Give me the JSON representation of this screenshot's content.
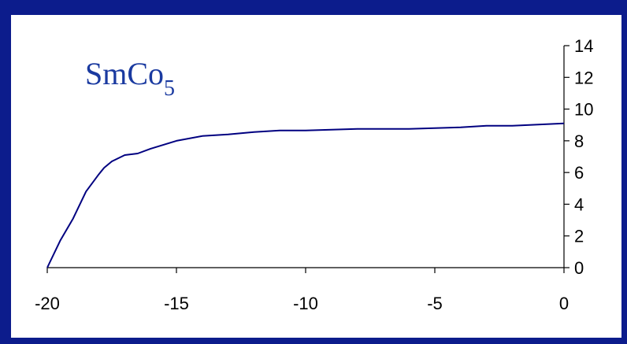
{
  "chart_data": {
    "type": "line",
    "title": "SmCo",
    "title_subscript": "5",
    "xlabel": "",
    "ylabel": "",
    "xlim": [
      -20,
      0
    ],
    "ylim": [
      0,
      14
    ],
    "x_ticks": [
      -20,
      -15,
      -10,
      -5,
      0
    ],
    "y_ticks": [
      0,
      2,
      4,
      6,
      8,
      10,
      12,
      14
    ],
    "y_axis_position": "right",
    "grid": false,
    "line_color": "#000080",
    "series": [
      {
        "x": [
          -20,
          -19.5,
          -19,
          -18.5,
          -18,
          -17.8,
          -17.5,
          -17,
          -16.5,
          -16,
          -15,
          -14,
          -13,
          -12,
          -11,
          -10,
          -8,
          -6,
          -4,
          -3,
          -2,
          0
        ],
        "values": [
          0,
          1.7,
          3.1,
          4.8,
          5.9,
          6.3,
          6.7,
          7.1,
          7.2,
          7.5,
          8.0,
          8.3,
          8.4,
          8.55,
          8.65,
          8.65,
          8.75,
          8.75,
          8.85,
          8.95,
          8.95,
          9.1
        ]
      }
    ]
  }
}
